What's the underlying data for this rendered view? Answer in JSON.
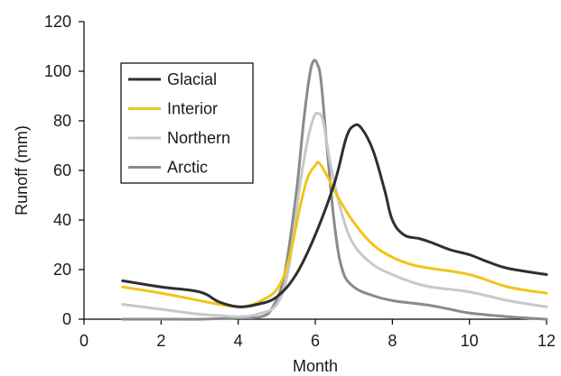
{
  "chart_data": {
    "type": "line",
    "title": "",
    "xlabel": "Month",
    "ylabel": "Runoff (mm)",
    "xlim": [
      0,
      12
    ],
    "ylim": [
      0,
      120
    ],
    "xticks": [
      0,
      2,
      4,
      6,
      8,
      10,
      12
    ],
    "yticks": [
      0,
      20,
      40,
      60,
      80,
      100,
      120
    ],
    "grid": false,
    "legend_position": "top-left",
    "series": [
      {
        "name": "Glacial",
        "color": "#2f2f2f",
        "x": [
          1,
          2,
          3,
          3.5,
          4,
          4.5,
          5,
          5.5,
          6,
          6.5,
          6.8,
          7.0,
          7.2,
          7.5,
          7.8,
          8,
          8.3,
          8.7,
          9,
          9.5,
          10,
          10.5,
          11,
          12
        ],
        "y": [
          15.5,
          13,
          11,
          7,
          5,
          6,
          9,
          18,
          34,
          55,
          73,
          78,
          77,
          68,
          52,
          40,
          34,
          32.5,
          31,
          28,
          26,
          23,
          20.5,
          18
        ]
      },
      {
        "name": "Interior",
        "color": "#f2c418",
        "x": [
          1,
          2,
          3,
          3.5,
          4,
          4.3,
          4.6,
          5,
          5.3,
          5.6,
          5.8,
          6,
          6.1,
          6.3,
          6.6,
          7,
          7.5,
          8,
          8.5,
          9,
          10,
          11,
          12
        ],
        "y": [
          13,
          10.5,
          7.5,
          6,
          5,
          5.5,
          7.5,
          12,
          23,
          45,
          57,
          62,
          63,
          58,
          49,
          39,
          30,
          25,
          22,
          20.5,
          18,
          13,
          10.5
        ]
      },
      {
        "name": "Northern",
        "color": "#c8c8c8",
        "x": [
          1,
          2,
          3,
          3.5,
          4,
          4.5,
          5,
          5.3,
          5.6,
          5.8,
          5.95,
          6.05,
          6.2,
          6.4,
          6.7,
          7,
          7.5,
          8,
          8.5,
          9,
          10,
          11,
          12
        ],
        "y": [
          6,
          4,
          2,
          1.5,
          1,
          2,
          6,
          20,
          54,
          72,
          81,
          83,
          80,
          62,
          42,
          30,
          22,
          18,
          15,
          13,
          11,
          7.5,
          5
        ]
      },
      {
        "name": "Arctic",
        "color": "#8a8a8a",
        "x": [
          1,
          2,
          3,
          4,
          4.6,
          4.9,
          5.2,
          5.5,
          5.7,
          5.85,
          5.95,
          6.05,
          6.15,
          6.3,
          6.5,
          6.7,
          7,
          7.5,
          8,
          8.5,
          9,
          9.5,
          10,
          11,
          12
        ],
        "y": [
          0,
          0,
          0,
          0.5,
          1,
          5,
          18,
          50,
          80,
          98,
          104,
          103,
          96,
          70,
          38,
          20,
          13,
          9.5,
          7.5,
          6.5,
          5.5,
          4,
          2.5,
          1,
          0
        ]
      }
    ]
  }
}
